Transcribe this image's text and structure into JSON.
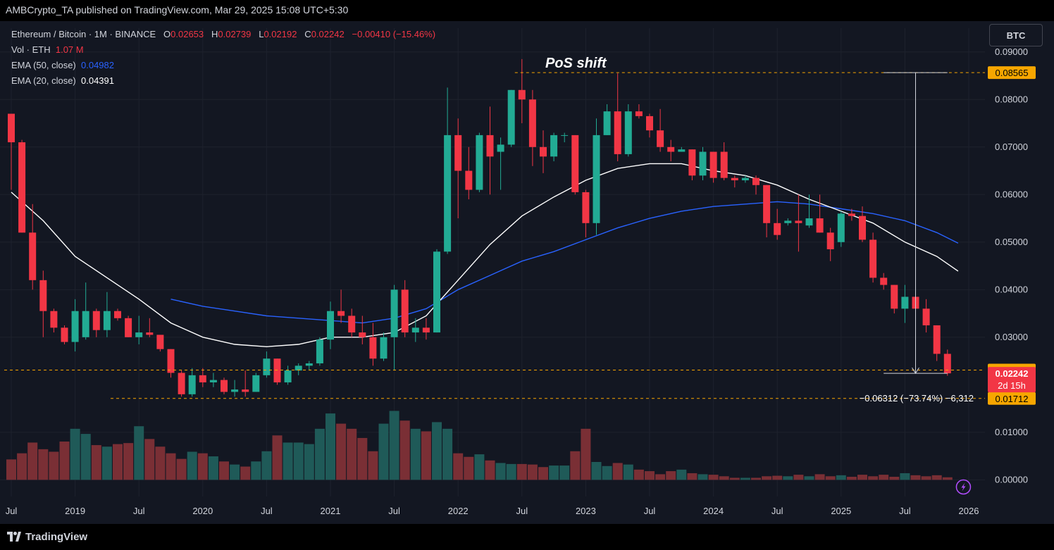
{
  "header": {
    "published": "AMBCrypto_TA published on TradingView.com, Mar 29, 2025 15:08 UTC+5:30"
  },
  "legend": {
    "symbol": "Ethereum / Bitcoin · 1M · BINANCE",
    "o_label": "O",
    "o_value": "0.02653",
    "h_label": "H",
    "h_value": "0.02739",
    "l_label": "L",
    "l_value": "0.02192",
    "c_label": "C",
    "c_value": "0.02242",
    "change": "−0.00410 (−15.46%)",
    "vol_label": "Vol · ETH",
    "vol_value": "1.07 M",
    "ema50_label": "EMA (50, close)",
    "ema50_value": "0.04982",
    "ema20_label": "EMA (20, close)",
    "ema20_value": "0.04391"
  },
  "currency_button": "BTC",
  "footer": {
    "brand": "TradingView"
  },
  "colors": {
    "bull": "#22ab94",
    "bear": "#f23645",
    "bull_vol": "#1f5a58",
    "bear_vol": "#7a2f35",
    "ema50": "#2962ff",
    "ema20": "#ffffff",
    "level": "#f7a600",
    "background": "#131722"
  },
  "chart_data": {
    "type": "candlestick",
    "interval": "1M",
    "ylim": [
      -0.0035,
      0.095
    ],
    "y_ticks": [
      "0.09000",
      "0.08000",
      "0.07000",
      "0.06000",
      "0.05000",
      "0.04000",
      "0.03000",
      "0.01000",
      "0.00000"
    ],
    "x_ticks": [
      {
        "label": "Jul",
        "m": 0
      },
      {
        "label": "2019",
        "m": 6
      },
      {
        "label": "Jul",
        "m": 12
      },
      {
        "label": "2020",
        "m": 18
      },
      {
        "label": "Jul",
        "m": 24
      },
      {
        "label": "2021",
        "m": 30
      },
      {
        "label": "Jul",
        "m": 36
      },
      {
        "label": "2022",
        "m": 42
      },
      {
        "label": "Jul",
        "m": 48
      },
      {
        "label": "2023",
        "m": 54
      },
      {
        "label": "Jul",
        "m": 60
      },
      {
        "label": "2024",
        "m": 66
      },
      {
        "label": "Jul",
        "m": 72
      },
      {
        "label": "2025",
        "m": 78
      },
      {
        "label": "Jul",
        "m": 84
      },
      {
        "label": "2026",
        "m": 90
      }
    ],
    "candles": [
      [
        0.077,
        0.077,
        0.061,
        0.071,
        0.4
      ],
      [
        0.071,
        0.0715,
        0.052,
        0.052,
        0.52
      ],
      [
        0.052,
        0.058,
        0.04,
        0.042,
        0.73
      ],
      [
        0.042,
        0.044,
        0.03,
        0.0355,
        0.6
      ],
      [
        0.0355,
        0.036,
        0.031,
        0.032,
        0.55
      ],
      [
        0.032,
        0.0325,
        0.0285,
        0.029,
        0.75
      ],
      [
        0.029,
        0.038,
        0.027,
        0.0355,
        1.0
      ],
      [
        0.03,
        0.0415,
        0.0295,
        0.0355,
        0.9
      ],
      [
        0.0355,
        0.036,
        0.03,
        0.0315,
        0.68
      ],
      [
        0.0315,
        0.0395,
        0.03,
        0.0355,
        0.65
      ],
      [
        0.0355,
        0.036,
        0.0335,
        0.034,
        0.7
      ],
      [
        0.034,
        0.0345,
        0.03,
        0.03,
        0.72
      ],
      [
        0.03,
        0.0345,
        0.0285,
        0.031,
        1.05
      ],
      [
        0.031,
        0.034,
        0.03,
        0.0305,
        0.8
      ],
      [
        0.0305,
        0.0305,
        0.027,
        0.0275,
        0.65
      ],
      [
        0.0275,
        0.0275,
        0.0215,
        0.0225,
        0.52
      ],
      [
        0.0225,
        0.023,
        0.0175,
        0.018,
        0.41
      ],
      [
        0.018,
        0.0235,
        0.0175,
        0.022,
        0.55
      ],
      [
        0.022,
        0.0235,
        0.0195,
        0.0205,
        0.52
      ],
      [
        0.0205,
        0.0225,
        0.0195,
        0.021,
        0.46
      ],
      [
        0.021,
        0.0215,
        0.018,
        0.0185,
        0.36
      ],
      [
        0.0185,
        0.021,
        0.0175,
        0.019,
        0.3
      ],
      [
        0.019,
        0.023,
        0.0175,
        0.0185,
        0.26
      ],
      [
        0.0185,
        0.0225,
        0.0185,
        0.022,
        0.36
      ],
      [
        0.022,
        0.027,
        0.0215,
        0.0255,
        0.56
      ],
      [
        0.0255,
        0.0255,
        0.02,
        0.0205,
        0.87
      ],
      [
        0.0205,
        0.024,
        0.02,
        0.023,
        0.73
      ],
      [
        0.023,
        0.0245,
        0.022,
        0.024,
        0.73
      ],
      [
        0.024,
        0.025,
        0.023,
        0.0245,
        0.7
      ],
      [
        0.0245,
        0.03,
        0.024,
        0.0295,
        1.0
      ],
      [
        0.0295,
        0.0375,
        0.0275,
        0.0355,
        1.3
      ],
      [
        0.0355,
        0.04,
        0.033,
        0.0345,
        1.1
      ],
      [
        0.0345,
        0.036,
        0.03,
        0.031,
        1.0
      ],
      [
        0.031,
        0.0345,
        0.0285,
        0.03,
        0.82
      ],
      [
        0.03,
        0.033,
        0.024,
        0.0255,
        0.56
      ],
      [
        0.0255,
        0.031,
        0.025,
        0.03,
        1.1
      ],
      [
        0.03,
        0.041,
        0.023,
        0.04,
        1.35
      ],
      [
        0.04,
        0.042,
        0.03,
        0.031,
        1.16
      ],
      [
        0.031,
        0.034,
        0.029,
        0.032,
        1.0
      ],
      [
        0.032,
        0.034,
        0.0295,
        0.031,
        0.95
      ],
      [
        0.031,
        0.0485,
        0.031,
        0.048,
        1.13
      ],
      [
        0.048,
        0.0825,
        0.0475,
        0.0725,
        1.0
      ],
      [
        0.0725,
        0.076,
        0.055,
        0.065,
        0.52
      ],
      [
        0.065,
        0.07,
        0.059,
        0.061,
        0.45
      ],
      [
        0.061,
        0.073,
        0.0605,
        0.0725,
        0.5
      ],
      [
        0.0725,
        0.0785,
        0.06,
        0.068,
        0.38
      ],
      [
        0.069,
        0.072,
        0.061,
        0.0705,
        0.33
      ],
      [
        0.0705,
        0.082,
        0.07,
        0.082,
        0.31
      ],
      [
        0.082,
        0.0885,
        0.075,
        0.08,
        0.31
      ],
      [
        0.08,
        0.082,
        0.066,
        0.07,
        0.3
      ],
      [
        0.07,
        0.0735,
        0.0645,
        0.068,
        0.25
      ],
      [
        0.068,
        0.073,
        0.067,
        0.0725,
        0.28
      ],
      [
        0.0725,
        0.073,
        0.071,
        0.0725,
        0.28
      ],
      [
        0.0725,
        0.0725,
        0.06,
        0.0605,
        0.56
      ],
      [
        0.0605,
        0.061,
        0.051,
        0.054,
        1.0
      ],
      [
        0.054,
        0.076,
        0.0515,
        0.0725,
        0.35
      ],
      [
        0.0725,
        0.079,
        0.0725,
        0.0775,
        0.27
      ],
      [
        0.0775,
        0.0855,
        0.067,
        0.0685,
        0.33
      ],
      [
        0.0685,
        0.079,
        0.068,
        0.0775,
        0.3
      ],
      [
        0.0775,
        0.079,
        0.076,
        0.0765,
        0.2
      ],
      [
        0.0765,
        0.077,
        0.072,
        0.0735,
        0.17
      ],
      [
        0.0735,
        0.078,
        0.069,
        0.07,
        0.11
      ],
      [
        0.07,
        0.0715,
        0.067,
        0.069,
        0.17
      ],
      [
        0.069,
        0.07,
        0.069,
        0.0695,
        0.2
      ],
      [
        0.0695,
        0.0695,
        0.063,
        0.064,
        0.13
      ],
      [
        0.064,
        0.07,
        0.063,
        0.069,
        0.11
      ],
      [
        0.069,
        0.069,
        0.0625,
        0.0635,
        0.1
      ],
      [
        0.069,
        0.071,
        0.063,
        0.0635,
        0.07
      ],
      [
        0.0635,
        0.064,
        0.0615,
        0.063,
        0.04
      ],
      [
        0.063,
        0.064,
        0.0625,
        0.0635,
        0.04
      ],
      [
        0.0635,
        0.064,
        0.06,
        0.062,
        0.04
      ],
      [
        0.062,
        0.062,
        0.051,
        0.054,
        0.07
      ],
      [
        0.054,
        0.057,
        0.0505,
        0.0515,
        0.08
      ],
      [
        0.054,
        0.055,
        0.0535,
        0.0545,
        0.07
      ],
      [
        0.0545,
        0.06,
        0.048,
        0.054,
        0.1
      ],
      [
        0.0535,
        0.06,
        0.053,
        0.055,
        0.07
      ],
      [
        0.055,
        0.06,
        0.052,
        0.052,
        0.11
      ],
      [
        0.052,
        0.053,
        0.046,
        0.0485,
        0.07
      ],
      [
        0.05,
        0.0565,
        0.049,
        0.056,
        0.09
      ],
      [
        0.056,
        0.057,
        0.0545,
        0.0555,
        0.06
      ],
      [
        0.0555,
        0.0575,
        0.05,
        0.0505,
        0.1
      ],
      [
        0.0505,
        0.052,
        0.0415,
        0.0425,
        0.07
      ],
      [
        0.0425,
        0.0435,
        0.04,
        0.041,
        0.1
      ],
      [
        0.041,
        0.041,
        0.035,
        0.036,
        0.06
      ],
      [
        0.036,
        0.041,
        0.033,
        0.0385,
        0.13
      ],
      [
        0.0385,
        0.04,
        0.035,
        0.036,
        0.09
      ],
      [
        0.036,
        0.038,
        0.031,
        0.0325,
        0.07
      ],
      [
        0.0325,
        0.0325,
        0.025,
        0.0265,
        0.09
      ],
      [
        0.0265,
        0.0274,
        0.0219,
        0.0224,
        0.05
      ]
    ],
    "ema20": [
      [
        0,
        0.0605
      ],
      [
        3,
        0.0545
      ],
      [
        6,
        0.047
      ],
      [
        9,
        0.0425
      ],
      [
        12,
        0.038
      ],
      [
        15,
        0.033
      ],
      [
        18,
        0.03
      ],
      [
        21,
        0.0285
      ],
      [
        24,
        0.028
      ],
      [
        27,
        0.0285
      ],
      [
        30,
        0.03
      ],
      [
        33,
        0.03
      ],
      [
        36,
        0.031
      ],
      [
        39,
        0.0345
      ],
      [
        42,
        0.042
      ],
      [
        45,
        0.0495
      ],
      [
        48,
        0.0555
      ],
      [
        51,
        0.0595
      ],
      [
        54,
        0.063
      ],
      [
        57,
        0.0655
      ],
      [
        60,
        0.0665
      ],
      [
        63,
        0.0665
      ],
      [
        66,
        0.065
      ],
      [
        69,
        0.064
      ],
      [
        72,
        0.062
      ],
      [
        75,
        0.059
      ],
      [
        78,
        0.0565
      ],
      [
        81,
        0.054
      ],
      [
        84,
        0.05
      ],
      [
        87,
        0.047
      ],
      [
        89,
        0.0439
      ]
    ],
    "ema50": [
      [
        15,
        0.038
      ],
      [
        18,
        0.0365
      ],
      [
        21,
        0.0355
      ],
      [
        24,
        0.0345
      ],
      [
        27,
        0.034
      ],
      [
        30,
        0.0335
      ],
      [
        33,
        0.033
      ],
      [
        36,
        0.034
      ],
      [
        39,
        0.036
      ],
      [
        42,
        0.04
      ],
      [
        45,
        0.043
      ],
      [
        48,
        0.046
      ],
      [
        51,
        0.048
      ],
      [
        54,
        0.0505
      ],
      [
        57,
        0.053
      ],
      [
        60,
        0.055
      ],
      [
        63,
        0.0565
      ],
      [
        66,
        0.0575
      ],
      [
        69,
        0.058
      ],
      [
        72,
        0.0585
      ],
      [
        75,
        0.058
      ],
      [
        78,
        0.057
      ],
      [
        81,
        0.056
      ],
      [
        84,
        0.0545
      ],
      [
        87,
        0.052
      ],
      [
        89,
        0.0498
      ]
    ],
    "levels": [
      {
        "price": 0.08565,
        "label": "0.08565",
        "m0": 48
      },
      {
        "price": 0.02309,
        "label": "0.02309",
        "m0": 0
      },
      {
        "price": 0.01712,
        "label": "0.01712",
        "m0": 10
      }
    ],
    "current_price": {
      "label": "0.02242",
      "countdown": "2d 15h"
    },
    "annotation": "PoS shift",
    "measure": "−0.06312 (−73.74%) −6,312"
  }
}
